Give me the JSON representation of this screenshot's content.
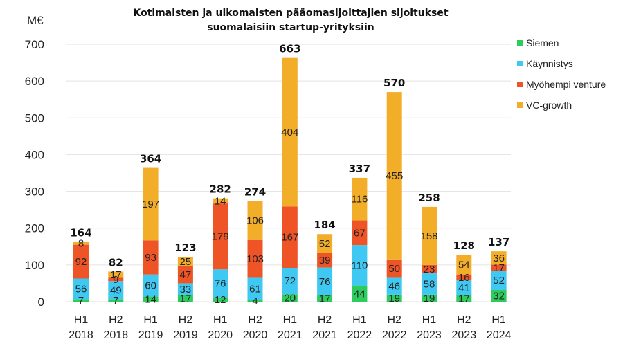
{
  "chart_data": {
    "type": "bar",
    "stacked": true,
    "title_lines": [
      "Kotimaisten ja ulkomaisten pääomasijoittajien sijoitukset",
      "suomalaisiin startup-yrityksiin"
    ],
    "yunit": "M€",
    "ylim": [
      0,
      700
    ],
    "yticks": [
      0,
      100,
      200,
      300,
      400,
      500,
      600,
      700
    ],
    "grid": true,
    "legend_position": "right",
    "categories": [
      [
        "H1",
        "2018"
      ],
      [
        "H2",
        "2018"
      ],
      [
        "H1",
        "2019"
      ],
      [
        "H2",
        "2019"
      ],
      [
        "H1",
        "2020"
      ],
      [
        "H2",
        "2020"
      ],
      [
        "H1",
        "2021"
      ],
      [
        "H2",
        "2021"
      ],
      [
        "H1",
        "2022"
      ],
      [
        "H2",
        "2022"
      ],
      [
        "H1",
        "2023"
      ],
      [
        "H2",
        "2023"
      ],
      [
        "H1",
        "2024"
      ]
    ],
    "series": [
      {
        "name": "Siemen",
        "color": "#2ecc5f",
        "values": [
          7,
          7,
          14,
          17,
          12,
          4,
          20,
          17,
          44,
          19,
          19,
          17,
          32
        ]
      },
      {
        "name": "Käynnistys",
        "color": "#3fc9f2",
        "values": [
          56,
          49,
          60,
          33,
          76,
          61,
          72,
          76,
          110,
          46,
          58,
          41,
          52
        ]
      },
      {
        "name": "Myöhempi venture",
        "color": "#ee5426",
        "values": [
          92,
          9,
          93,
          47,
          179,
          103,
          167,
          39,
          67,
          50,
          23,
          16,
          17
        ]
      },
      {
        "name": "VC-growth",
        "color": "#f2ad29",
        "values": [
          8,
          17,
          197,
          25,
          14,
          106,
          404,
          52,
          116,
          455,
          158,
          54,
          36
        ]
      }
    ],
    "totals": [
      164,
      82,
      364,
      123,
      282,
      274,
      663,
      184,
      337,
      570,
      258,
      128,
      137
    ]
  }
}
